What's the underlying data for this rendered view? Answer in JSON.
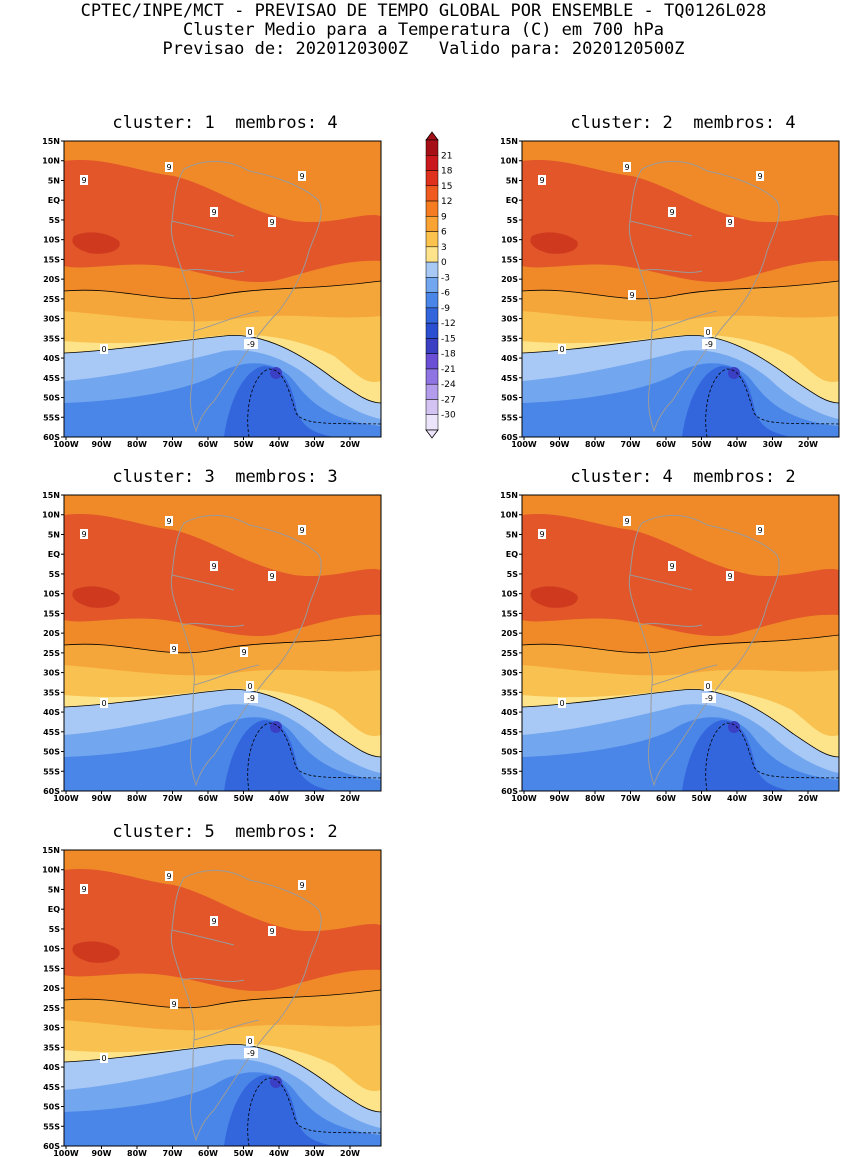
{
  "header": {
    "line1": "CPTEC/INPE/MCT - PREVISAO DE TEMPO GLOBAL POR ENSEMBLE - TQ0126L028",
    "line2": "Cluster Medio para a Temperatura (C) em 700 hPa",
    "line3": "Previsao de: 2020120300Z   Valido para: 2020120500Z"
  },
  "panels": [
    {
      "title": "cluster: 1  membros: 4",
      "labels_9": 9,
      "label_0": "0",
      "label_m9": "-9"
    },
    {
      "title": "cluster: 2  membros: 4",
      "labels_9": 9,
      "label_0": "0",
      "label_m9": "-9"
    },
    {
      "title": "cluster: 3  membros: 3",
      "labels_9": 9,
      "label_0": "0",
      "label_m9": "-9"
    },
    {
      "title": "cluster: 4  membros: 2",
      "labels_9": 9,
      "label_0": "0",
      "label_m9": "-9"
    },
    {
      "title": "cluster: 5  membros: 2",
      "labels_9": 9,
      "label_0": "0",
      "label_m9": "-9"
    }
  ],
  "axes": {
    "lat_ticks": [
      "15N",
      "10N",
      "5N",
      "EQ",
      "5S",
      "10S",
      "15S",
      "20S",
      "25S",
      "30S",
      "35S",
      "40S",
      "45S",
      "50S",
      "55S",
      "60S"
    ],
    "lon_ticks": [
      "100W",
      "90W",
      "80W",
      "70W",
      "60W",
      "50W",
      "40W",
      "30W",
      "20W"
    ]
  },
  "colorbar": {
    "levels": [
      "21",
      "18",
      "15",
      "12",
      "9",
      "6",
      "3",
      "0",
      "-3",
      "-6",
      "-9",
      "-12",
      "-15",
      "-18",
      "-21",
      "-24",
      "-27",
      "-30"
    ],
    "colors": [
      "#a50f15",
      "#cb181d",
      "#e0301e",
      "#ef5a21",
      "#f57c21",
      "#f9a334",
      "#fbc24e",
      "#fde38a",
      "#a8c8f5",
      "#72a6ef",
      "#4a86e8",
      "#3366dd",
      "#2a4fd0",
      "#3a3fc4",
      "#6a4fd6",
      "#8f74e3",
      "#b39ceb",
      "#d3c3f3",
      "#ece4fa"
    ]
  }
}
